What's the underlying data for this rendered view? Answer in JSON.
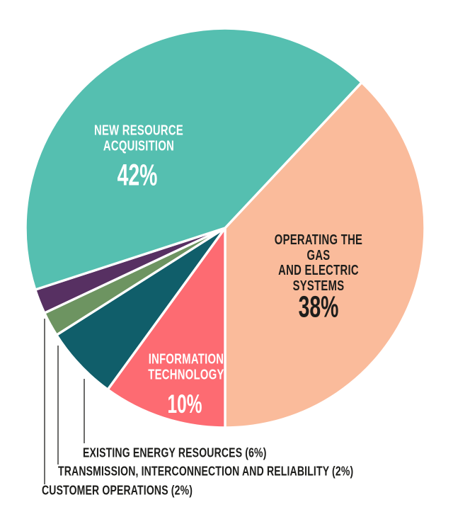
{
  "chart_data": {
    "type": "pie",
    "title": "",
    "values_unit": "%",
    "total": 100,
    "direction": "clockwise",
    "start_angle_clockwise_from_top_deg": 43.2,
    "legend_position": "bottom-left",
    "slices": [
      {
        "id": "operating-gas-electric-systems",
        "label": "OPERATING THE GAS AND ELECTRIC SYSTEMS",
        "label_display": "OPERATING THE GAS\nAND ELECTRIC\nSYSTEMS",
        "value": 38,
        "pct_label": "38%",
        "color": "#FABB9B",
        "label_color": "#1D1D1B",
        "label_placement": "inside"
      },
      {
        "id": "information-technology",
        "label": "INFORMATION TECHNOLOGY",
        "label_display": "INFORMATION\nTECHNOLOGY",
        "value": 10,
        "pct_label": "10%",
        "color": "#FD6B72",
        "label_color": "#FFFFFF",
        "label_placement": "inside"
      },
      {
        "id": "existing-energy-resources",
        "label": "EXISTING ENERGY RESOURCES",
        "value": 6,
        "pct_label": "(6%)",
        "color": "#105E6A",
        "label_color": "#1D1D1B",
        "legend_text": "EXISTING ENERGY RESOURCES (6%)",
        "label_placement": "legend-callout"
      },
      {
        "id": "transmission-interconnection-reliability",
        "label": "TRANSMISSION, INTERCONNECTION AND RELIABILITY",
        "value": 2,
        "pct_label": "(2%)",
        "color": "#6D9461",
        "label_color": "#1D1D1B",
        "legend_text": "TRANSMISSION, INTERCONNECTION AND RELIABILITY (2%)",
        "label_placement": "legend-callout"
      },
      {
        "id": "customer-operations",
        "label": "CUSTOMER OPERATIONS",
        "value": 2,
        "pct_label": "(2%)",
        "color": "#573062",
        "label_color": "#1D1D1B",
        "legend_text": "CUSTOMER OPERATIONS (2%)",
        "label_placement": "legend-callout"
      },
      {
        "id": "new-resource-acquisition",
        "label": "NEW RESOURCE ACQUISITION",
        "label_display": "NEW RESOURCE\nACQUISITION",
        "value": 42,
        "pct_label": "42%",
        "color": "#55BFB0",
        "label_color": "#FFFFFF",
        "label_placement": "inside"
      }
    ]
  }
}
